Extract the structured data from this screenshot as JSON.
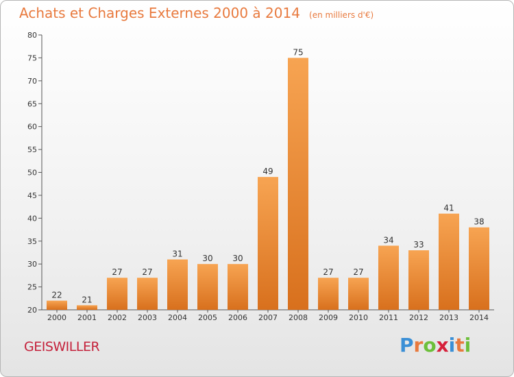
{
  "header": {
    "title": "Achats et Charges Externes 2000 à 2014",
    "subtitle": "(en milliers d'€)"
  },
  "footer": {
    "commune": "GEISWILLER",
    "logo_letters": [
      "P",
      "r",
      "o",
      "x",
      "i",
      "t",
      "i"
    ],
    "logo_colors": [
      "#3a8fd6",
      "#e8793d",
      "#6cbf3a",
      "#d6203a",
      "#3a8fd6",
      "#e8793d",
      "#6cbf3a"
    ]
  },
  "chart_data": {
    "type": "bar",
    "title": "Achats et Charges Externes 2000 à 2014",
    "subtitle": "(en milliers d'€)",
    "categories": [
      "2000",
      "2001",
      "2002",
      "2003",
      "2004",
      "2005",
      "2006",
      "2007",
      "2008",
      "2009",
      "2010",
      "2011",
      "2012",
      "2013",
      "2014"
    ],
    "values": [
      22,
      21,
      27,
      27,
      31,
      30,
      30,
      49,
      75,
      27,
      27,
      34,
      33,
      41,
      38
    ],
    "ylim": [
      20,
      80
    ],
    "yticks": [
      20,
      25,
      30,
      35,
      40,
      45,
      50,
      55,
      60,
      65,
      70,
      75,
      80
    ],
    "grid": false,
    "bar_color_top": "#f7a452",
    "bar_color_bottom": "#d8701d"
  }
}
